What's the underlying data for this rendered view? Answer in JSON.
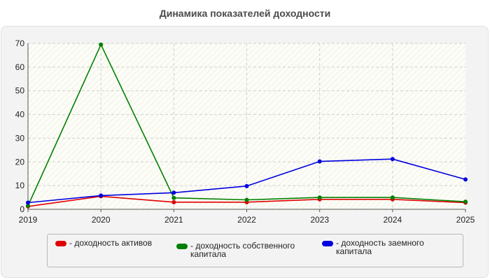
{
  "chart_data": {
    "type": "line",
    "title": "Динамика показателей доходности",
    "xlabel": "",
    "ylabel": "",
    "x": [
      "2019",
      "2020",
      "2021",
      "2022",
      "2023",
      "2024",
      "2025"
    ],
    "ylim": [
      0,
      70
    ],
    "yticks": [
      0,
      10,
      20,
      30,
      40,
      50,
      60,
      70
    ],
    "grid": true,
    "legend_position": "bottom",
    "series": [
      {
        "name": "- доходность активов",
        "color": "#e00000",
        "values": [
          1.2,
          5.5,
          3.0,
          3.0,
          4.2,
          4.2,
          2.8
        ]
      },
      {
        "name": "- доходность собственного капитала",
        "color": "#008000",
        "values": [
          1.5,
          69.5,
          4.8,
          4.0,
          5.0,
          5.0,
          3.2
        ]
      },
      {
        "name": "- доходность заемного капитала",
        "color": "#0000e0",
        "values": [
          2.8,
          5.8,
          7.0,
          9.8,
          20.2,
          21.2,
          12.6
        ]
      }
    ]
  }
}
